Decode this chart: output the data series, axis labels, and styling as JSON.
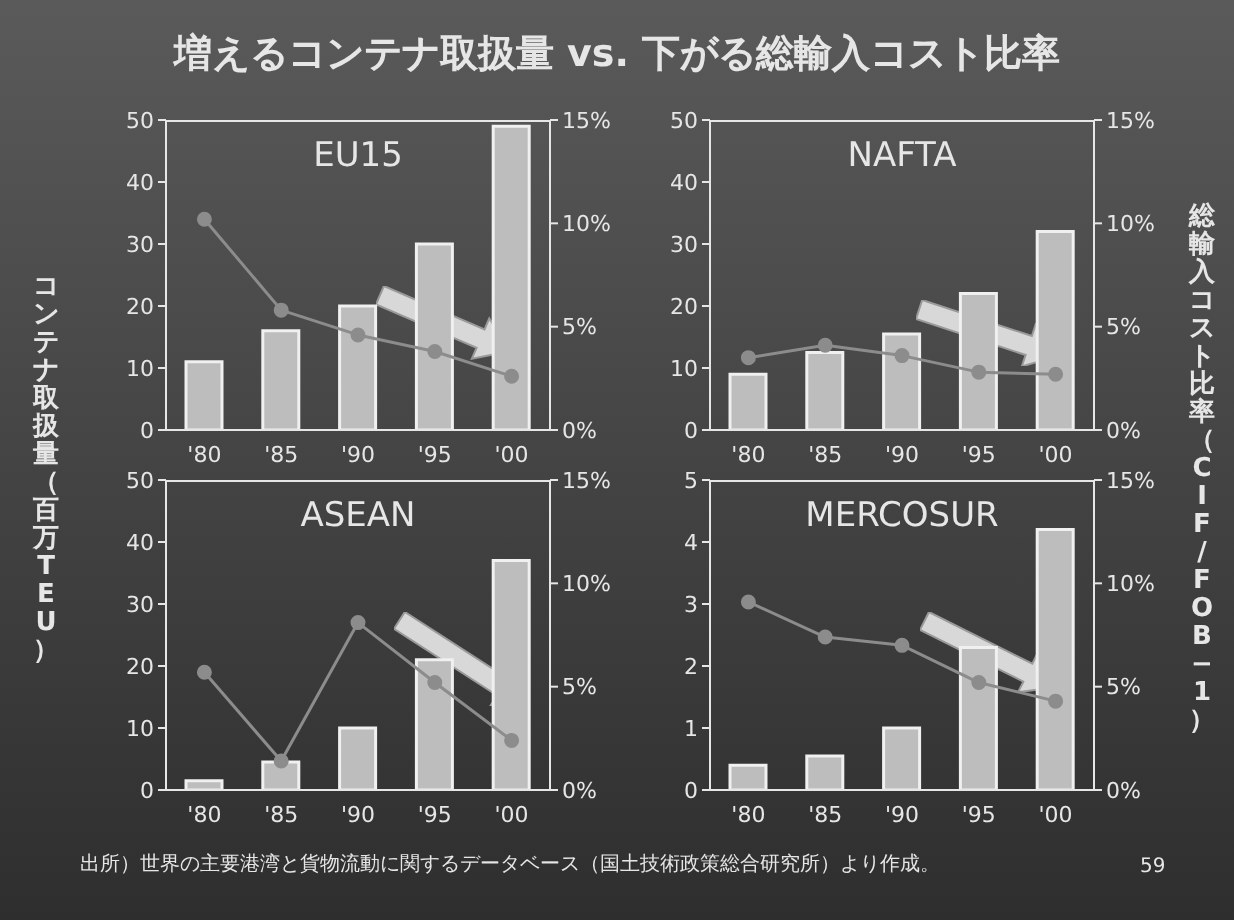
{
  "chart_data": [
    {
      "type": "bar",
      "title": "EU15",
      "ylabel": "コンテナ取扱量（百万TEU）",
      "annotations": [
        "増えるコンテナ取扱量 vs. 下がる総輸入コスト比率",
        "出所）世界の主要港湾と貨物流動に関するデータベース（国土技術政策総合研究所）より作成。",
        "59"
      ],
      "categories": [
        "'80",
        "'85",
        "'90",
        "'95",
        "'00"
      ],
      "marker": "circle",
      "line_style": "solid",
      "series": [
        {
          "type": "bar",
          "color": "#bdbdbd",
          "values": [
            11,
            16,
            20,
            30,
            49
          ]
        },
        {
          "type": "line",
          "axis": "y2",
          "color": "#8c8c8c",
          "values": [
            10.2,
            5.8,
            4.6,
            3.8,
            2.6
          ]
        }
      ],
      "ylim": [
        0,
        50
      ],
      "yticks": [
        0,
        10,
        20,
        30,
        40,
        50
      ],
      "y2lim": [
        0,
        15
      ],
      "y2ticks": [
        {
          "value": 0,
          "label": "0%"
        },
        {
          "value": 5,
          "label": "5%"
        },
        {
          "value": 10,
          "label": "10%"
        },
        {
          "value": 15,
          "label": "15%"
        }
      ]
    },
    {
      "type": "bar",
      "title": "NAFTA",
      "y2label": "総輸入コスト比率（CIF/FOB−1）",
      "categories": [
        "'80",
        "'85",
        "'90",
        "'95",
        "'00"
      ],
      "marker": "circle",
      "line_style": "solid",
      "series": [
        {
          "type": "bar",
          "color": "#bdbdbd",
          "values": [
            9,
            12.5,
            15.5,
            22,
            32
          ]
        },
        {
          "type": "line",
          "axis": "y2",
          "color": "#8c8c8c",
          "values": [
            3.5,
            4.1,
            3.6,
            2.8,
            2.7
          ]
        }
      ],
      "ylim": [
        0,
        50
      ],
      "yticks": [
        0,
        10,
        20,
        30,
        40,
        50
      ],
      "y2lim": [
        0,
        15
      ],
      "y2ticks": [
        {
          "value": 0,
          "label": "0%"
        },
        {
          "value": 5,
          "label": "5%"
        },
        {
          "value": 10,
          "label": "10%"
        },
        {
          "value": 15,
          "label": "15%"
        }
      ]
    },
    {
      "type": "bar",
      "title": "ASEAN",
      "categories": [
        "'80",
        "'85",
        "'90",
        "'95",
        "'00"
      ],
      "marker": "circle",
      "line_style": "solid",
      "series": [
        {
          "type": "bar",
          "color": "#bdbdbd",
          "values": [
            1.5,
            4.5,
            10,
            21,
            37
          ]
        },
        {
          "type": "line",
          "axis": "y2",
          "color": "#8c8c8c",
          "values": [
            5.7,
            1.4,
            8.1,
            5.2,
            2.4
          ]
        }
      ],
      "ylim": [
        0,
        50
      ],
      "yticks": [
        0,
        10,
        20,
        30,
        40,
        50
      ],
      "y2lim": [
        0,
        15
      ],
      "y2ticks": [
        {
          "value": 0,
          "label": "0%"
        },
        {
          "value": 5,
          "label": "5%"
        },
        {
          "value": 10,
          "label": "10%"
        },
        {
          "value": 15,
          "label": "15%"
        }
      ]
    },
    {
      "type": "bar",
      "title": "MERCOSUR",
      "categories": [
        "'80",
        "'85",
        "'90",
        "'95",
        "'00"
      ],
      "marker": "circle",
      "line_style": "solid",
      "series": [
        {
          "type": "bar",
          "color": "#bdbdbd",
          "values": [
            0.4,
            0.55,
            1.0,
            2.3,
            4.2
          ]
        },
        {
          "type": "line",
          "axis": "y2",
          "color": "#8c8c8c",
          "values": [
            9.1,
            7.4,
            7.0,
            5.2,
            4.3
          ]
        }
      ],
      "ylim": [
        0,
        5
      ],
      "yticks": [
        0,
        1,
        2,
        3,
        4,
        5
      ],
      "y2lim": [
        0,
        15
      ],
      "y2ticks": [
        {
          "value": 0,
          "label": "0%"
        },
        {
          "value": 5,
          "label": "5%"
        },
        {
          "value": 10,
          "label": "10%"
        },
        {
          "value": 15,
          "label": "15%"
        }
      ]
    }
  ]
}
